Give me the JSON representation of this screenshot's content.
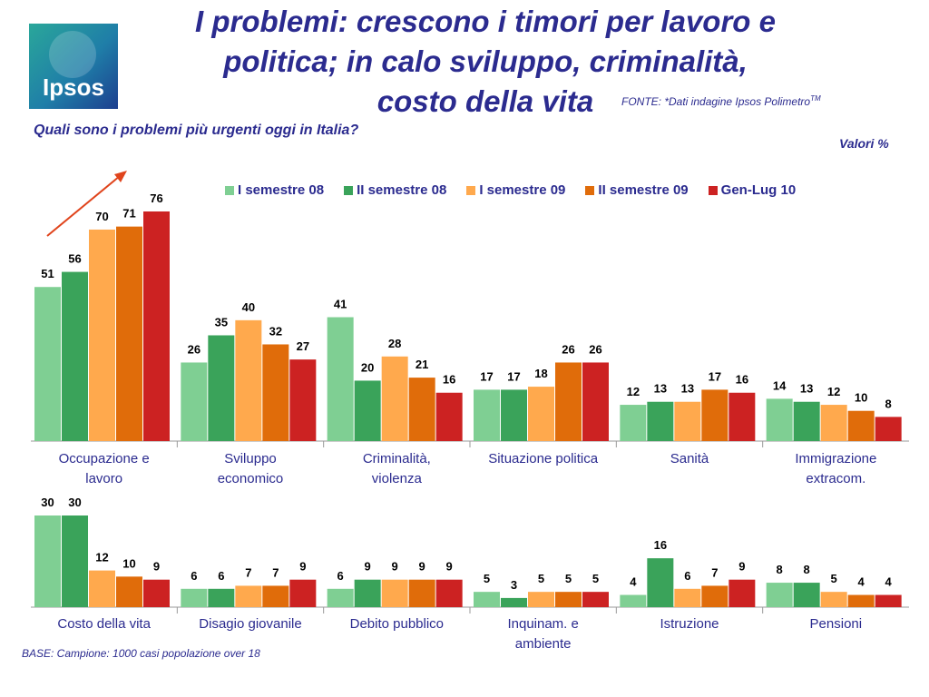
{
  "header": {
    "title_line1": "I problemi: crescono i timori per lavoro e",
    "title_line2": "politica; in calo sviluppo, criminalità,",
    "title_line3": "costo della vita",
    "source": "FONTE: *Dati indagine Ipsos Polimetro",
    "source_sup": "TM",
    "logo_text": "Ipsos"
  },
  "question": "Quali sono i problemi più urgenti oggi in Italia?",
  "units_note": "Valori %",
  "base_note": "BASE: Campione: 1000 casi popolazione over 18",
  "colors": {
    "series": [
      "#7fcf93",
      "#3aa35a",
      "#ffa94d",
      "#e06c0a",
      "#cc2222"
    ],
    "text": "#2b2b8f",
    "arrow": "#e0441c"
  },
  "chart_data": [
    {
      "type": "bar",
      "series_names": [
        "I semestre 08",
        "II semestre 08",
        "I semestre 09",
        "II semestre 09",
        "Gen-Lug 10"
      ],
      "categories": [
        [
          "Occupazione e",
          "lavoro"
        ],
        [
          "Sviluppo",
          "economico"
        ],
        [
          "Criminalità,",
          "violenza"
        ],
        [
          "Situazione politica"
        ],
        [
          "Sanità"
        ],
        [
          "Immigrazione",
          "extracom."
        ]
      ],
      "values": [
        [
          51,
          56,
          70,
          71,
          76
        ],
        [
          26,
          35,
          40,
          32,
          27
        ],
        [
          41,
          20,
          28,
          21,
          16
        ],
        [
          17,
          17,
          18,
          26,
          26
        ],
        [
          12,
          13,
          13,
          17,
          16
        ],
        [
          14,
          13,
          12,
          10,
          8
        ]
      ],
      "ylim": [
        0,
        76
      ]
    },
    {
      "type": "bar",
      "series_names": [
        "I semestre 08",
        "II semestre 08",
        "I semestre 09",
        "II semestre 09",
        "Gen-Lug 10"
      ],
      "categories": [
        [
          "Costo della vita"
        ],
        [
          "Disagio giovanile"
        ],
        [
          "Debito pubblico"
        ],
        [
          "Inquinam. e",
          "ambiente"
        ],
        [
          "Istruzione"
        ],
        [
          "Pensioni"
        ]
      ],
      "values": [
        [
          30,
          30,
          12,
          10,
          9
        ],
        [
          6,
          6,
          7,
          7,
          9
        ],
        [
          6,
          9,
          9,
          9,
          9
        ],
        [
          5,
          3,
          5,
          5,
          5
        ],
        [
          4,
          16,
          6,
          7,
          9
        ],
        [
          8,
          8,
          5,
          4,
          4
        ]
      ],
      "ylim": [
        0,
        30
      ]
    }
  ]
}
